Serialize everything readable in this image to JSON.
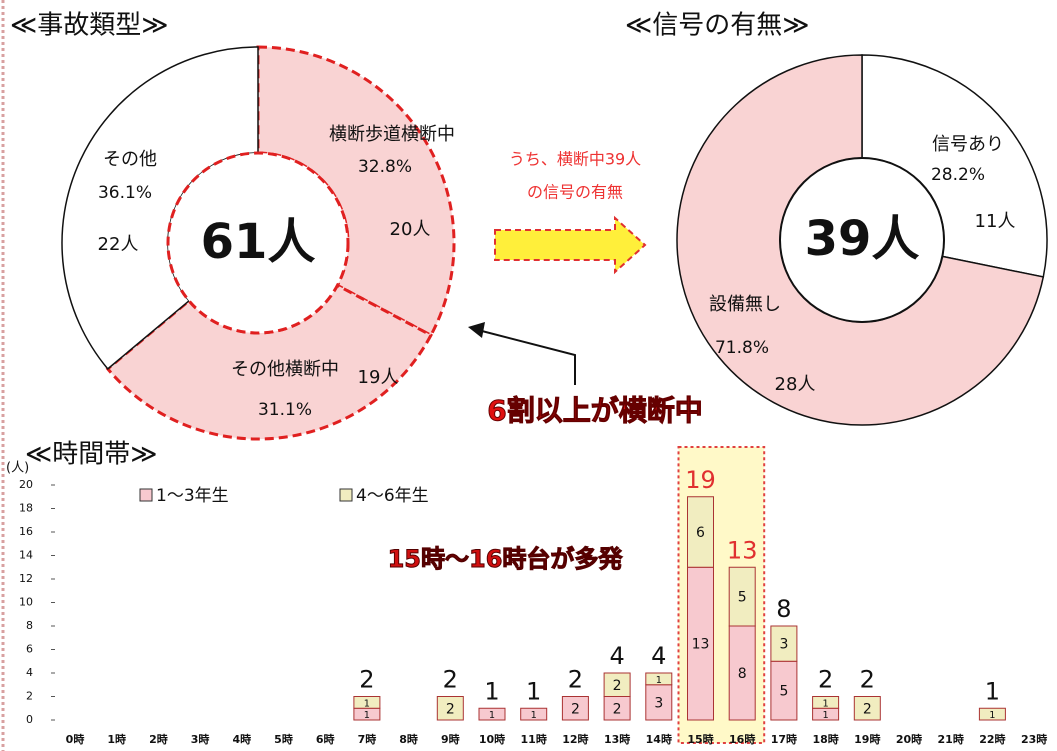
{
  "chart_data": [
    {
      "type": "donut",
      "title": "≪事故類型≫",
      "center_label": "61人",
      "categories": [
        "横断歩道横断中",
        "その他横断中",
        "その他"
      ],
      "values": [
        32.8,
        31.1,
        36.1
      ],
      "value_labels": [
        "32.8%",
        "31.1%",
        "36.1%"
      ],
      "count_labels": [
        "20人",
        "19人",
        "22人"
      ],
      "colors": [
        "#f9d3d3",
        "#f9d3d3",
        "#ffffff"
      ]
    },
    {
      "type": "donut",
      "title": "≪信号の有無≫",
      "center_label": "39人",
      "categories": [
        "信号あり",
        "設備無し"
      ],
      "values": [
        28.2,
        71.8
      ],
      "value_labels": [
        "28.2%",
        "71.8%"
      ],
      "count_labels": [
        "11人",
        "28人"
      ],
      "colors": [
        "#ffffff",
        "#f9d3d3"
      ]
    },
    {
      "type": "stacked_bar",
      "title": "≪時間帯≫",
      "ylabel": "(人)",
      "categories": [
        "0時",
        "1時",
        "2時",
        "3時",
        "4時",
        "5時",
        "6時",
        "7時",
        "8時",
        "9時",
        "10時",
        "11時",
        "12時",
        "13時",
        "14時",
        "15時",
        "16時",
        "17時",
        "18時",
        "19時",
        "20時",
        "21時",
        "22時",
        "23時"
      ],
      "series": [
        {
          "name": "1～3年生",
          "color": "#f7c9cf",
          "values": [
            0,
            0,
            0,
            0,
            0,
            0,
            0,
            1,
            0,
            0,
            1,
            1,
            2,
            2,
            3,
            13,
            8,
            5,
            1,
            0,
            0,
            0,
            0,
            0
          ]
        },
        {
          "name": "4～6年生",
          "color": "#f1edc0",
          "values": [
            0,
            0,
            0,
            0,
            0,
            0,
            0,
            1,
            0,
            2,
            0,
            0,
            0,
            2,
            1,
            6,
            5,
            3,
            1,
            2,
            0,
            0,
            1,
            0
          ]
        }
      ],
      "totals": [
        null,
        null,
        null,
        null,
        null,
        null,
        null,
        2,
        null,
        2,
        1,
        1,
        2,
        4,
        4,
        19,
        13,
        8,
        2,
        2,
        null,
        null,
        1,
        null
      ],
      "ylim": [
        0,
        20
      ],
      "yticks": [
        0,
        2,
        4,
        6,
        8,
        10,
        12,
        14,
        16,
        18,
        20
      ]
    }
  ],
  "annotations": [
    "うち、横断中39人",
    "の信号の有無",
    "6割以上が横断中",
    "15時～16時台が多発"
  ]
}
